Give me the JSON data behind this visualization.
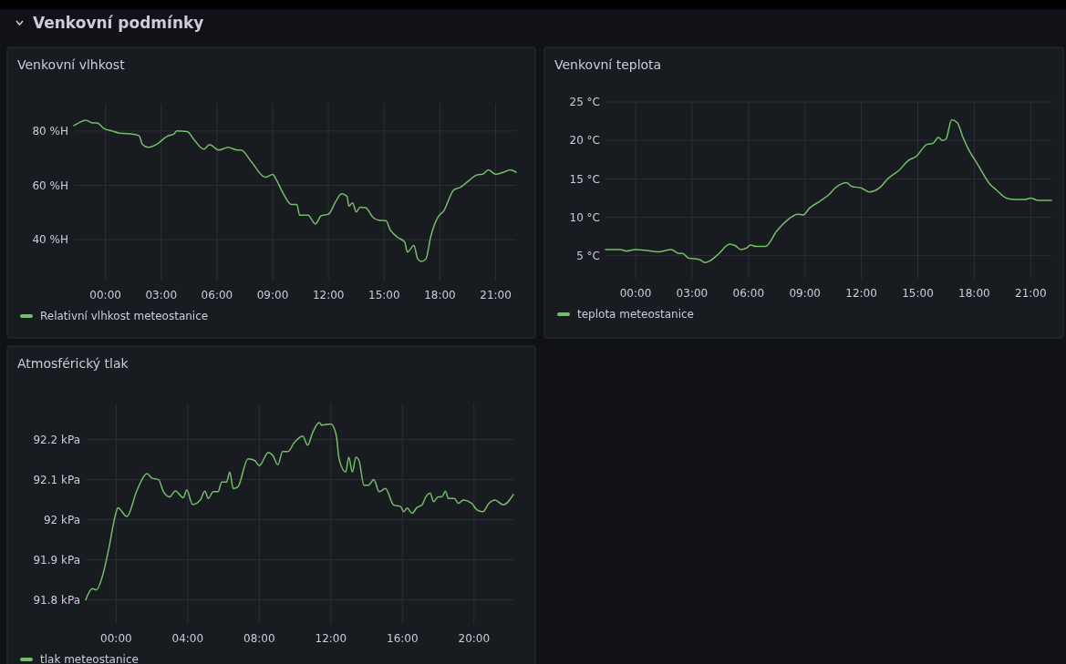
{
  "chart_data": [
    {
      "type": "line",
      "title": "Venkovní vlhkost",
      "annotations": [
        "Venkovní podmínky"
      ],
      "xlim": [
        -1.7,
        22.1
      ],
      "ylim": [
        25,
        90
      ],
      "xticks": [
        {
          "value": 0,
          "label": "00:00"
        },
        {
          "value": 3,
          "label": "03:00"
        },
        {
          "value": 6,
          "label": "06:00"
        },
        {
          "value": 9,
          "label": "09:00"
        },
        {
          "value": 12,
          "label": "12:00"
        },
        {
          "value": 15,
          "label": "15:00"
        },
        {
          "value": 18,
          "label": "18:00"
        },
        {
          "value": 21,
          "label": "21:00"
        }
      ],
      "yticks": [
        {
          "value": 40,
          "label": "40 %H"
        },
        {
          "value": 60,
          "label": "60 %H"
        },
        {
          "value": 80,
          "label": "80 %H"
        }
      ],
      "grid": true,
      "legend": "bottom",
      "marker": "none",
      "line_style": "solid",
      "series": [
        {
          "name": "Relativní vlhkost meteostanice",
          "color": "#73bf69",
          "x": [
            -1.7,
            -1.43,
            -1.07,
            -0.7,
            -0.45,
            -0.1,
            0.36,
            0.7,
            1.25,
            1.8,
            2.0,
            2.3,
            2.8,
            3.3,
            3.7,
            3.84,
            4.4,
            4.8,
            5.3,
            5.6,
            6.1,
            6.6,
            7.1,
            7.3,
            7.85,
            8.6,
            9.0,
            9.2,
            9.6,
            10.0,
            10.3,
            10.45,
            10.9,
            11.3,
            11.6,
            12.0,
            12.4,
            12.7,
            13.0,
            13.1,
            13.3,
            13.5,
            13.7,
            14.0,
            14.4,
            14.7,
            15.1,
            15.3,
            15.7,
            16.1,
            16.25,
            16.6,
            16.8,
            17.0,
            17.25,
            17.5,
            17.9,
            18.2,
            18.75,
            19.1,
            19.6,
            20.0,
            20.3,
            20.6,
            21.0,
            21.4,
            21.8,
            22.1
          ],
          "values": [
            82,
            83,
            84,
            83,
            83,
            81,
            80,
            79.3,
            79,
            78.3,
            75,
            74,
            75.3,
            78,
            79,
            80,
            79.8,
            76.5,
            73.3,
            75,
            73,
            74,
            73,
            73,
            68.7,
            63,
            64,
            62,
            56.6,
            53,
            53,
            49,
            49,
            45.8,
            48.8,
            49.4,
            54.2,
            56.9,
            56,
            52.4,
            53.6,
            50.2,
            52,
            51.8,
            48.2,
            47.2,
            47,
            44,
            41,
            39.2,
            35.5,
            37.9,
            33,
            32,
            33,
            41,
            48.4,
            50.6,
            58.4,
            59.3,
            62,
            63.9,
            64.1,
            65.7,
            64.1,
            64.8,
            65.7,
            64.8
          ]
        }
      ]
    },
    {
      "type": "line",
      "title": "Venkovní teplota",
      "xlim": [
        -1.6,
        22.1
      ],
      "ylim": [
        2,
        25
      ],
      "xticks": [
        {
          "value": 0,
          "label": "00:00"
        },
        {
          "value": 3,
          "label": "03:00"
        },
        {
          "value": 6,
          "label": "06:00"
        },
        {
          "value": 9,
          "label": "09:00"
        },
        {
          "value": 12,
          "label": "12:00"
        },
        {
          "value": 15,
          "label": "15:00"
        },
        {
          "value": 18,
          "label": "18:00"
        },
        {
          "value": 21,
          "label": "21:00"
        }
      ],
      "yticks": [
        {
          "value": 5,
          "label": "5 °C"
        },
        {
          "value": 10,
          "label": "10 °C"
        },
        {
          "value": 15,
          "label": "15 °C"
        },
        {
          "value": 20,
          "label": "20 °C"
        },
        {
          "value": 25,
          "label": "25 °C"
        }
      ],
      "grid": true,
      "legend": "bottom",
      "marker": "none",
      "line_style": "solid",
      "series": [
        {
          "name": "teplota meteostanice",
          "color": "#73bf69",
          "x": [
            -1.6,
            -0.8,
            -0.5,
            0,
            0.5,
            1.2,
            1.9,
            2.3,
            2.5,
            2.8,
            3.4,
            3.7,
            4.0,
            4.4,
            5.0,
            5.3,
            5.6,
            5.9,
            6.1,
            6.4,
            6.9,
            7.5,
            8.1,
            8.6,
            8.9,
            9.25,
            9.8,
            10.3,
            10.6,
            11.0,
            11.2,
            11.5,
            12.0,
            12.4,
            13.0,
            13.4,
            14.0,
            14.5,
            14.9,
            15.5,
            15.8,
            16.1,
            16.3,
            16.5,
            16.8,
            17.1,
            17.4,
            17.6,
            18.2,
            18.8,
            19.2,
            19.7,
            20.2,
            20.7,
            21.0,
            21.4,
            22.1
          ],
          "values": [
            5.8,
            5.8,
            5.6,
            5.8,
            5.7,
            5.5,
            5.8,
            5.3,
            5.3,
            4.7,
            4.5,
            4.1,
            4.4,
            5.2,
            6.5,
            6.3,
            5.8,
            6.0,
            6.4,
            6.2,
            6.2,
            8.2,
            9.7,
            10.4,
            10.3,
            11.2,
            12.1,
            13.0,
            13.8,
            14.4,
            14.5,
            14.0,
            13.8,
            13.3,
            13.9,
            15.0,
            16.1,
            17.4,
            17.9,
            19.5,
            19.6,
            20.4,
            20.0,
            20.2,
            22.7,
            22.3,
            20.4,
            19.3,
            16.8,
            14.4,
            13.5,
            12.5,
            12.3,
            12.3,
            12.5,
            12.2,
            12.2
          ]
        }
      ]
    },
    {
      "type": "line",
      "title": "Atmosférický tlak",
      "xlim": [
        -1.7,
        22.2
      ],
      "ylim": [
        91.74,
        92.29
      ],
      "xticks": [
        {
          "value": 0,
          "label": "00:00"
        },
        {
          "value": 4,
          "label": "04:00"
        },
        {
          "value": 8,
          "label": "08:00"
        },
        {
          "value": 12,
          "label": "12:00"
        },
        {
          "value": 16,
          "label": "16:00"
        },
        {
          "value": 20,
          "label": "20:00"
        }
      ],
      "yticks": [
        {
          "value": 91.8,
          "label": "91.8 kPa"
        },
        {
          "value": 91.9,
          "label": "91.9 kPa"
        },
        {
          "value": 92,
          "label": "92 kPa"
        },
        {
          "value": 92.1,
          "label": "92.1 kPa"
        },
        {
          "value": 92.2,
          "label": "92.2 kPa"
        }
      ],
      "grid": true,
      "legend": "bottom",
      "marker": "none",
      "line_style": "solid",
      "series": [
        {
          "name": "tlak meteostanice",
          "color": "#73bf69",
          "x": [
            -1.7,
            -1.33,
            -1.1,
            -0.78,
            -0.4,
            -0.04,
            0.1,
            0.6,
            1.17,
            1.72,
            2.0,
            2.37,
            2.65,
            3.0,
            3.3,
            3.76,
            3.94,
            4.28,
            4.7,
            4.96,
            5.15,
            5.43,
            5.7,
            5.9,
            6.17,
            6.35,
            6.54,
            6.8,
            7.37,
            7.74,
            8.0,
            8.5,
            8.76,
            9.04,
            9.3,
            9.6,
            9.96,
            10.43,
            10.7,
            10.98,
            11.35,
            11.5,
            12.0,
            12.3,
            12.46,
            12.83,
            13.0,
            13.2,
            13.4,
            13.57,
            13.85,
            14.1,
            14.4,
            14.7,
            15.05,
            15.5,
            15.9,
            16.07,
            16.26,
            16.54,
            16.8,
            17.1,
            17.28,
            17.55,
            17.74,
            18.0,
            18.2,
            18.4,
            18.57,
            18.9,
            19.13,
            19.4,
            19.87,
            20.15,
            20.5,
            20.8,
            21.17,
            21.63,
            22.2
          ],
          "values": [
            91.8,
            91.828,
            91.825,
            91.857,
            91.93,
            92.012,
            92.03,
            92.008,
            92.074,
            92.115,
            92.104,
            92.1,
            92.07,
            92.057,
            92.072,
            92.055,
            92.074,
            92.038,
            92.049,
            92.071,
            92.053,
            92.07,
            92.07,
            92.094,
            92.094,
            92.119,
            92.078,
            92.082,
            92.152,
            92.148,
            92.135,
            92.168,
            92.16,
            92.137,
            92.17,
            92.17,
            92.193,
            92.209,
            92.186,
            92.217,
            92.242,
            92.236,
            92.239,
            92.211,
            92.152,
            92.119,
            92.156,
            92.119,
            92.156,
            92.148,
            92.086,
            92.086,
            92.1,
            92.07,
            92.078,
            92.037,
            92.033,
            92.02,
            92.029,
            92.016,
            92.03,
            92.037,
            92.055,
            92.066,
            92.045,
            92.057,
            92.057,
            92.071,
            92.053,
            92.053,
            92.041,
            92.049,
            92.041,
            92.025,
            92.02,
            92.039,
            92.049,
            92.037,
            92.063
          ]
        }
      ]
    }
  ]
}
